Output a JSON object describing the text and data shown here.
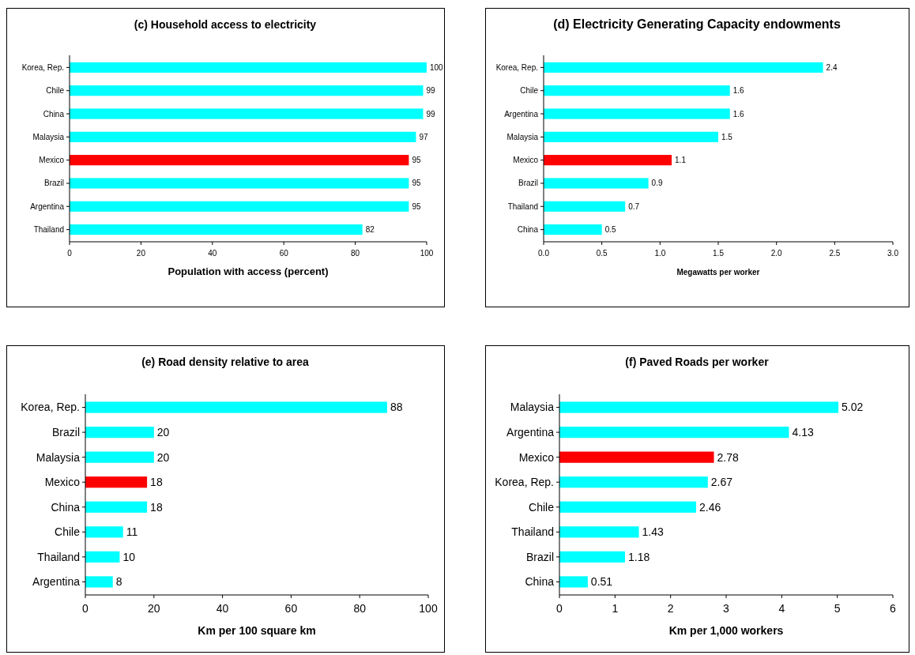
{
  "chart_data": [
    {
      "type": "bar",
      "orientation": "horizontal",
      "title": "(c) Household access to electricity",
      "xlabel": "Population with access (percent)",
      "categories": [
        "Korea, Rep.",
        "Chile",
        "China",
        "Malaysia",
        "Mexico",
        "Brazil",
        "Argentina",
        "Thailand"
      ],
      "values": [
        100,
        99,
        99,
        97,
        95,
        95,
        95,
        82
      ],
      "colors": [
        "#00ffff",
        "#00ffff",
        "#00ffff",
        "#00ffff",
        "#ff0000",
        "#00ffff",
        "#00ffff",
        "#00ffff"
      ],
      "xlim": [
        0,
        100
      ],
      "xticks": [
        0,
        20,
        40,
        60,
        80,
        100
      ],
      "data_labels": true
    },
    {
      "type": "bar",
      "orientation": "horizontal",
      "title": "(d) Electricity Generating Capacity endowments",
      "xlabel": "Megawatts per worker",
      "categories": [
        "Korea, Rep.",
        "Chile",
        "Argentina",
        "Malaysia",
        "Mexico",
        "Brazil",
        "Thailand",
        "China"
      ],
      "values": [
        2.4,
        1.6,
        1.6,
        1.5,
        1.1,
        0.9,
        0.7,
        0.5
      ],
      "colors": [
        "#00ffff",
        "#00ffff",
        "#00ffff",
        "#00ffff",
        "#ff0000",
        "#00ffff",
        "#00ffff",
        "#00ffff"
      ],
      "xlim": [
        0,
        3
      ],
      "xticks": [
        {
          "value": 0,
          "label": "0.0"
        },
        {
          "value": 0.5,
          "label": "0.5"
        },
        {
          "value": 1,
          "label": "1.0"
        },
        {
          "value": 1.5,
          "label": "1.5"
        },
        {
          "value": 2,
          "label": "2.0"
        },
        {
          "value": 2.5,
          "label": "2.5"
        },
        {
          "value": 3,
          "label": "3.0"
        }
      ],
      "data_labels": true
    },
    {
      "type": "bar",
      "orientation": "horizontal",
      "title": "(e) Road density relative to area",
      "xlabel": "Km per 100 square km",
      "categories": [
        "Korea, Rep.",
        "Brazil",
        "Malaysia",
        "Mexico",
        "China",
        "Chile",
        "Thailand",
        "Argentina"
      ],
      "values": [
        88,
        20,
        20,
        18,
        18,
        11,
        10,
        8
      ],
      "colors": [
        "#00ffff",
        "#00ffff",
        "#00ffff",
        "#ff0000",
        "#00ffff",
        "#00ffff",
        "#00ffff",
        "#00ffff"
      ],
      "xlim": [
        0,
        100
      ],
      "xticks": [
        0,
        20,
        40,
        60,
        80,
        100
      ],
      "data_labels": true
    },
    {
      "type": "bar",
      "orientation": "horizontal",
      "title": "(f) Paved Roads per worker",
      "xlabel": "Km per 1,000 workers",
      "categories": [
        "Malaysia",
        "Argentina",
        "Mexico",
        "Korea, Rep.",
        "Chile",
        "Thailand",
        "Brazil",
        "China"
      ],
      "values": [
        5.02,
        4.13,
        2.78,
        2.67,
        2.46,
        1.43,
        1.18,
        0.51
      ],
      "colors": [
        "#00ffff",
        "#00ffff",
        "#ff0000",
        "#00ffff",
        "#00ffff",
        "#00ffff",
        "#00ffff",
        "#00ffff"
      ],
      "xlim": [
        0,
        6
      ],
      "xticks": [
        0,
        1,
        2,
        3,
        4,
        5,
        6
      ],
      "data_labels": true
    }
  ]
}
